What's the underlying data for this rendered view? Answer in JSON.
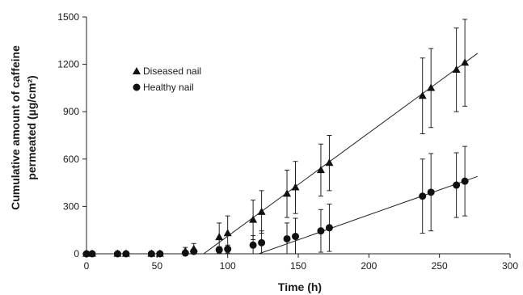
{
  "chart_data": {
    "type": "scatter",
    "xlabel": "Time (h)",
    "ylabel": [
      "Cumulative amount of caffeine",
      "permeated (µg/cm²)"
    ],
    "xlim": [
      0,
      300
    ],
    "ylim": [
      0,
      1500
    ],
    "xticks": [
      0,
      50,
      100,
      150,
      200,
      250,
      300
    ],
    "yticks": [
      0,
      300,
      600,
      900,
      1200,
      1500
    ],
    "grid": false,
    "legend_position": "top-left",
    "series": [
      {
        "name": "Diseased nail",
        "marker": "triangle",
        "color": "#111111",
        "points": [
          {
            "x": 0,
            "y": 0,
            "err": 0
          },
          {
            "x": 4,
            "y": 0,
            "err": 0
          },
          {
            "x": 22,
            "y": 0,
            "err": 0
          },
          {
            "x": 28,
            "y": 0,
            "err": 0
          },
          {
            "x": 46,
            "y": 0,
            "err": 0
          },
          {
            "x": 52,
            "y": 0,
            "err": 0
          },
          {
            "x": 70,
            "y": 15,
            "err": 25
          },
          {
            "x": 76,
            "y": 30,
            "err": 35
          },
          {
            "x": 94,
            "y": 105,
            "err": 90
          },
          {
            "x": 100,
            "y": 130,
            "err": 110
          },
          {
            "x": 118,
            "y": 215,
            "err": 125
          },
          {
            "x": 124,
            "y": 265,
            "err": 135
          },
          {
            "x": 142,
            "y": 380,
            "err": 150
          },
          {
            "x": 148,
            "y": 420,
            "err": 165
          },
          {
            "x": 166,
            "y": 530,
            "err": 165
          },
          {
            "x": 172,
            "y": 575,
            "err": 175
          },
          {
            "x": 238,
            "y": 1000,
            "err": 240
          },
          {
            "x": 244,
            "y": 1050,
            "err": 250
          },
          {
            "x": 262,
            "y": 1165,
            "err": 265
          },
          {
            "x": 268,
            "y": 1210,
            "err": 275
          }
        ],
        "trendline": {
          "x": [
            83,
            277
          ],
          "y": [
            0,
            1270
          ]
        }
      },
      {
        "name": "Healthy nail",
        "marker": "circle",
        "color": "#111111",
        "points": [
          {
            "x": 0,
            "y": 0,
            "err": 0
          },
          {
            "x": 4,
            "y": 0,
            "err": 0
          },
          {
            "x": 22,
            "y": 0,
            "err": 0
          },
          {
            "x": 28,
            "y": 0,
            "err": 0
          },
          {
            "x": 46,
            "y": 0,
            "err": 0
          },
          {
            "x": 52,
            "y": 0,
            "err": 0
          },
          {
            "x": 70,
            "y": 5,
            "err": 10
          },
          {
            "x": 76,
            "y": 15,
            "err": 15
          },
          {
            "x": 94,
            "y": 25,
            "err": 20
          },
          {
            "x": 100,
            "y": 30,
            "err": 25
          },
          {
            "x": 118,
            "y": 55,
            "err": 60
          },
          {
            "x": 124,
            "y": 70,
            "err": 75
          },
          {
            "x": 142,
            "y": 95,
            "err": 100
          },
          {
            "x": 148,
            "y": 110,
            "err": 115
          },
          {
            "x": 166,
            "y": 145,
            "err": 135
          },
          {
            "x": 172,
            "y": 165,
            "err": 150
          },
          {
            "x": 238,
            "y": 365,
            "err": 235
          },
          {
            "x": 244,
            "y": 390,
            "err": 245
          },
          {
            "x": 262,
            "y": 435,
            "err": 205
          },
          {
            "x": 268,
            "y": 460,
            "err": 220
          }
        ],
        "trendline": {
          "x": [
            122,
            277
          ],
          "y": [
            0,
            490
          ]
        }
      }
    ]
  }
}
